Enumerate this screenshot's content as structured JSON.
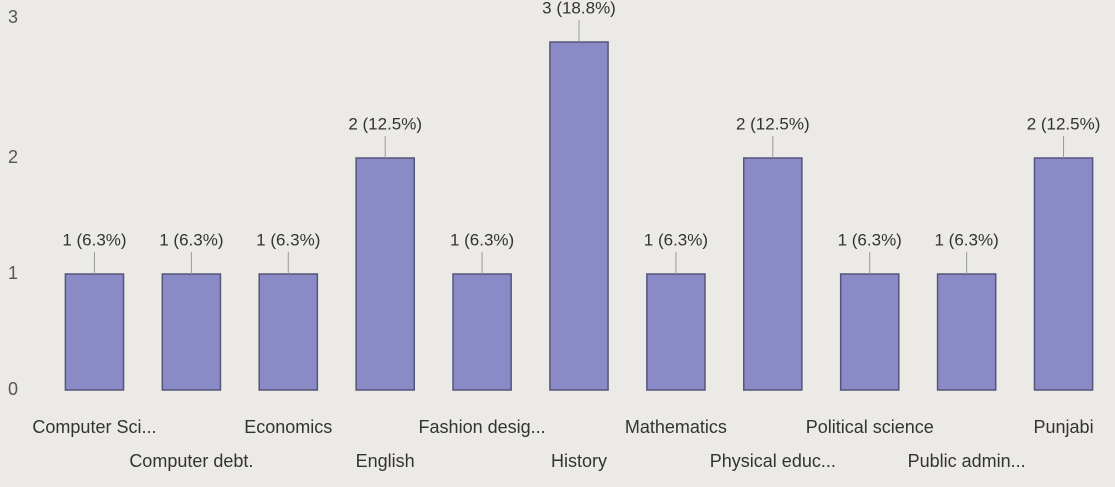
{
  "chart_data": {
    "type": "bar",
    "categories": [
      "Computer Sci...",
      "Computer debt.",
      "Economics",
      "English",
      "Fashion desig...",
      "History",
      "Mathematics",
      "Physical educ...",
      "Political science",
      "Public admin...",
      "Punjabi"
    ],
    "values": [
      1,
      1,
      1,
      2,
      1,
      3,
      1,
      2,
      1,
      1,
      2
    ],
    "value_labels": [
      "1 (6.3%)",
      "1 (6.3%)",
      "1 (6.3%)",
      "2 (12.5%)",
      "1 (6.3%)",
      "3 (18.8%)",
      "1 (6.3%)",
      "2 (12.5%)",
      "1 (6.3%)",
      "1 (6.3%)",
      "2 (12.5%)"
    ],
    "color": "#8a8ac6",
    "ylim": [
      0,
      3
    ],
    "yticks": [
      0,
      1,
      2,
      3
    ],
    "grid": false
  }
}
